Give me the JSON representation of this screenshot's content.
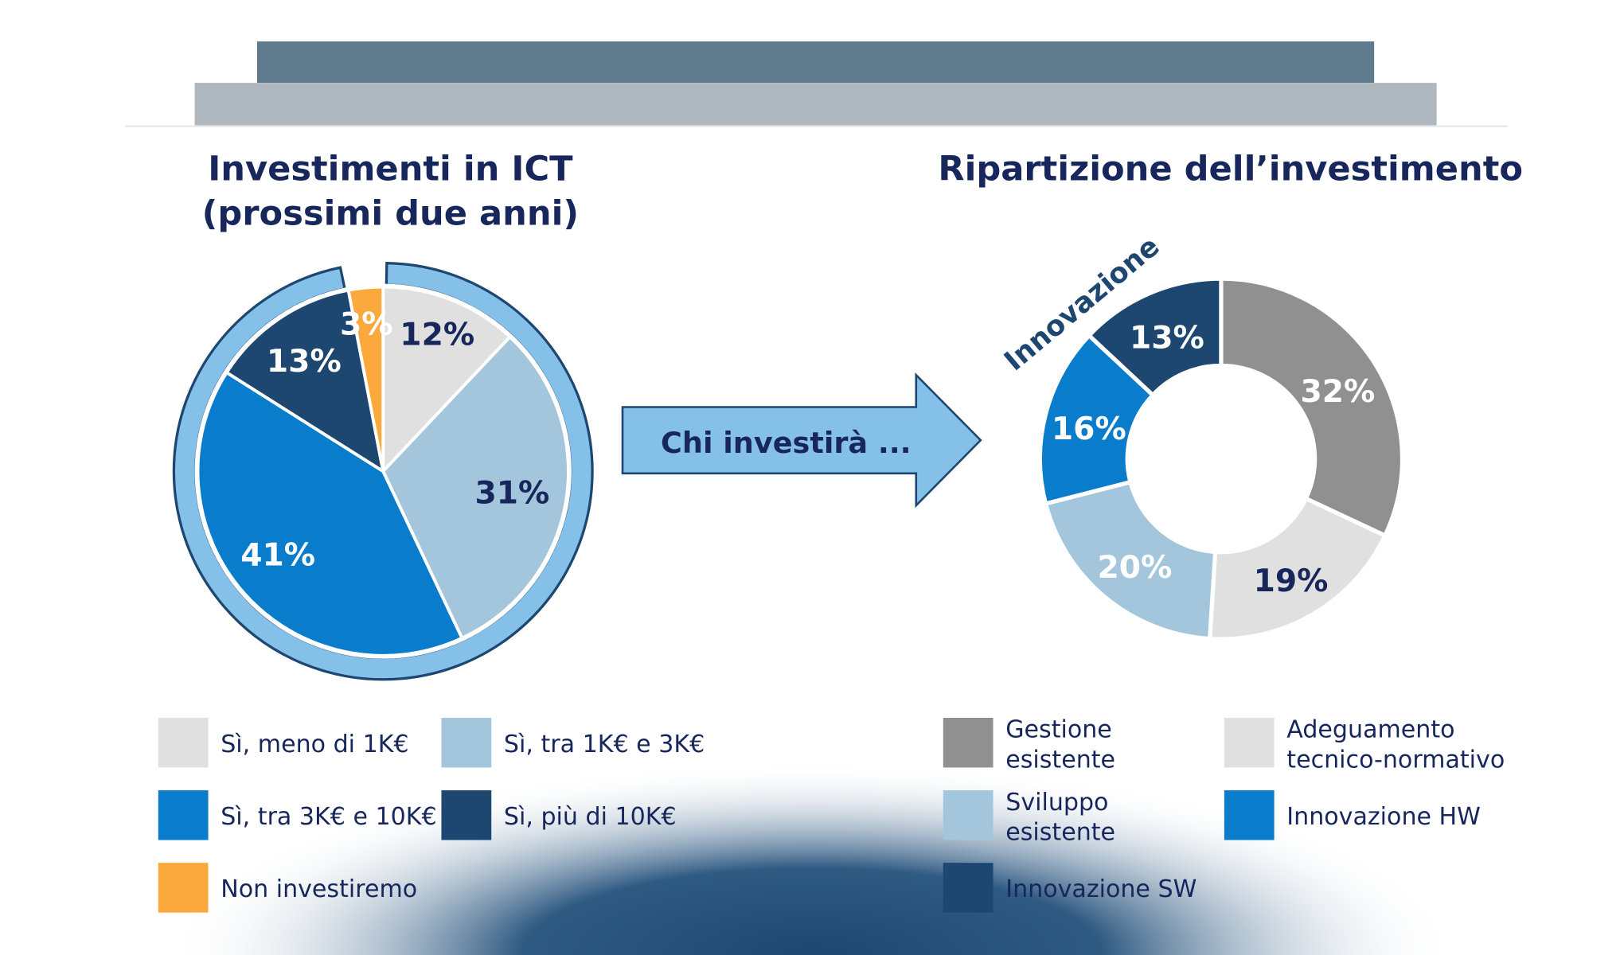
{
  "colors": {
    "header_dark": "#5e7a8c",
    "header_light": "#b0b8bf",
    "navy": "#1d4771",
    "blue": "#0a7ccc",
    "light_blue": "#a3c6dc",
    "light_gray": "#e0e0e0",
    "gray": "#909090",
    "orange": "#fba93c",
    "ring": "#85c0e8",
    "text": "#17275c"
  },
  "arrow": {
    "label": "Chi investirà ..."
  },
  "chart_data": [
    {
      "type": "pie",
      "title": "Investimenti in ICT",
      "subtitle": "(prossimi due anni)",
      "ring_annotation": "ring groups all 'Sì' slices (investors)",
      "slices": [
        {
          "label": "Sì, meno di 1K€",
          "value": 12,
          "display": "12%",
          "color": "#e0e0e0",
          "text_color": "#17275c"
        },
        {
          "label": "Sì, tra 1K€ e 3K€",
          "value": 31,
          "display": "31%",
          "color": "#a3c6dc",
          "text_color": "#17275c"
        },
        {
          "label": "Sì, tra 3K€ e  10K€",
          "value": 41,
          "display": "41%",
          "color": "#0a7ccc",
          "text_color": "#ffffff"
        },
        {
          "label": "Sì, più di 10K€",
          "value": 13,
          "display": "13%",
          "color": "#1d4771",
          "text_color": "#ffffff"
        },
        {
          "label": "Non investiremo",
          "value": 3,
          "display": "3%",
          "color": "#fba93c",
          "text_color": "#ffffff"
        }
      ],
      "legend": [
        "Sì, meno di 1K€",
        "Sì, tra 1K€ e 3K€",
        "Sì, tra 3K€ e  10K€",
        "Sì, più di 10K€",
        "Non investiremo"
      ]
    },
    {
      "type": "pie",
      "variant": "donut",
      "title": "Ripartizione dell’investimento",
      "annotation": "Innovazione",
      "slices": [
        {
          "label": "Gestione esistente",
          "value": 32,
          "display": "32%",
          "color": "#909090",
          "text_color": "#ffffff"
        },
        {
          "label": "Adeguamento tecnico-normativo",
          "value": 19,
          "display": "19%",
          "color": "#e0e0e0",
          "text_color": "#17275c"
        },
        {
          "label": "Sviluppo esistente",
          "value": 20,
          "display": "20%",
          "color": "#a3c6dc",
          "text_color": "#ffffff"
        },
        {
          "label": "Innovazione HW",
          "value": 16,
          "display": "16%",
          "color": "#0a7ccc",
          "text_color": "#ffffff"
        },
        {
          "label": "Innovazione SW",
          "value": 13,
          "display": "13%",
          "color": "#1d4771",
          "text_color": "#ffffff"
        }
      ],
      "legend": [
        {
          "line1": "Gestione",
          "line2": "esistente"
        },
        {
          "line1": "Adeguamento",
          "line2": "tecnico-normativo"
        },
        {
          "line1": "Sviluppo",
          "line2": "esistente"
        },
        {
          "line1": "Innovazione HW"
        },
        {
          "line1": "Innovazione SW"
        }
      ]
    }
  ]
}
